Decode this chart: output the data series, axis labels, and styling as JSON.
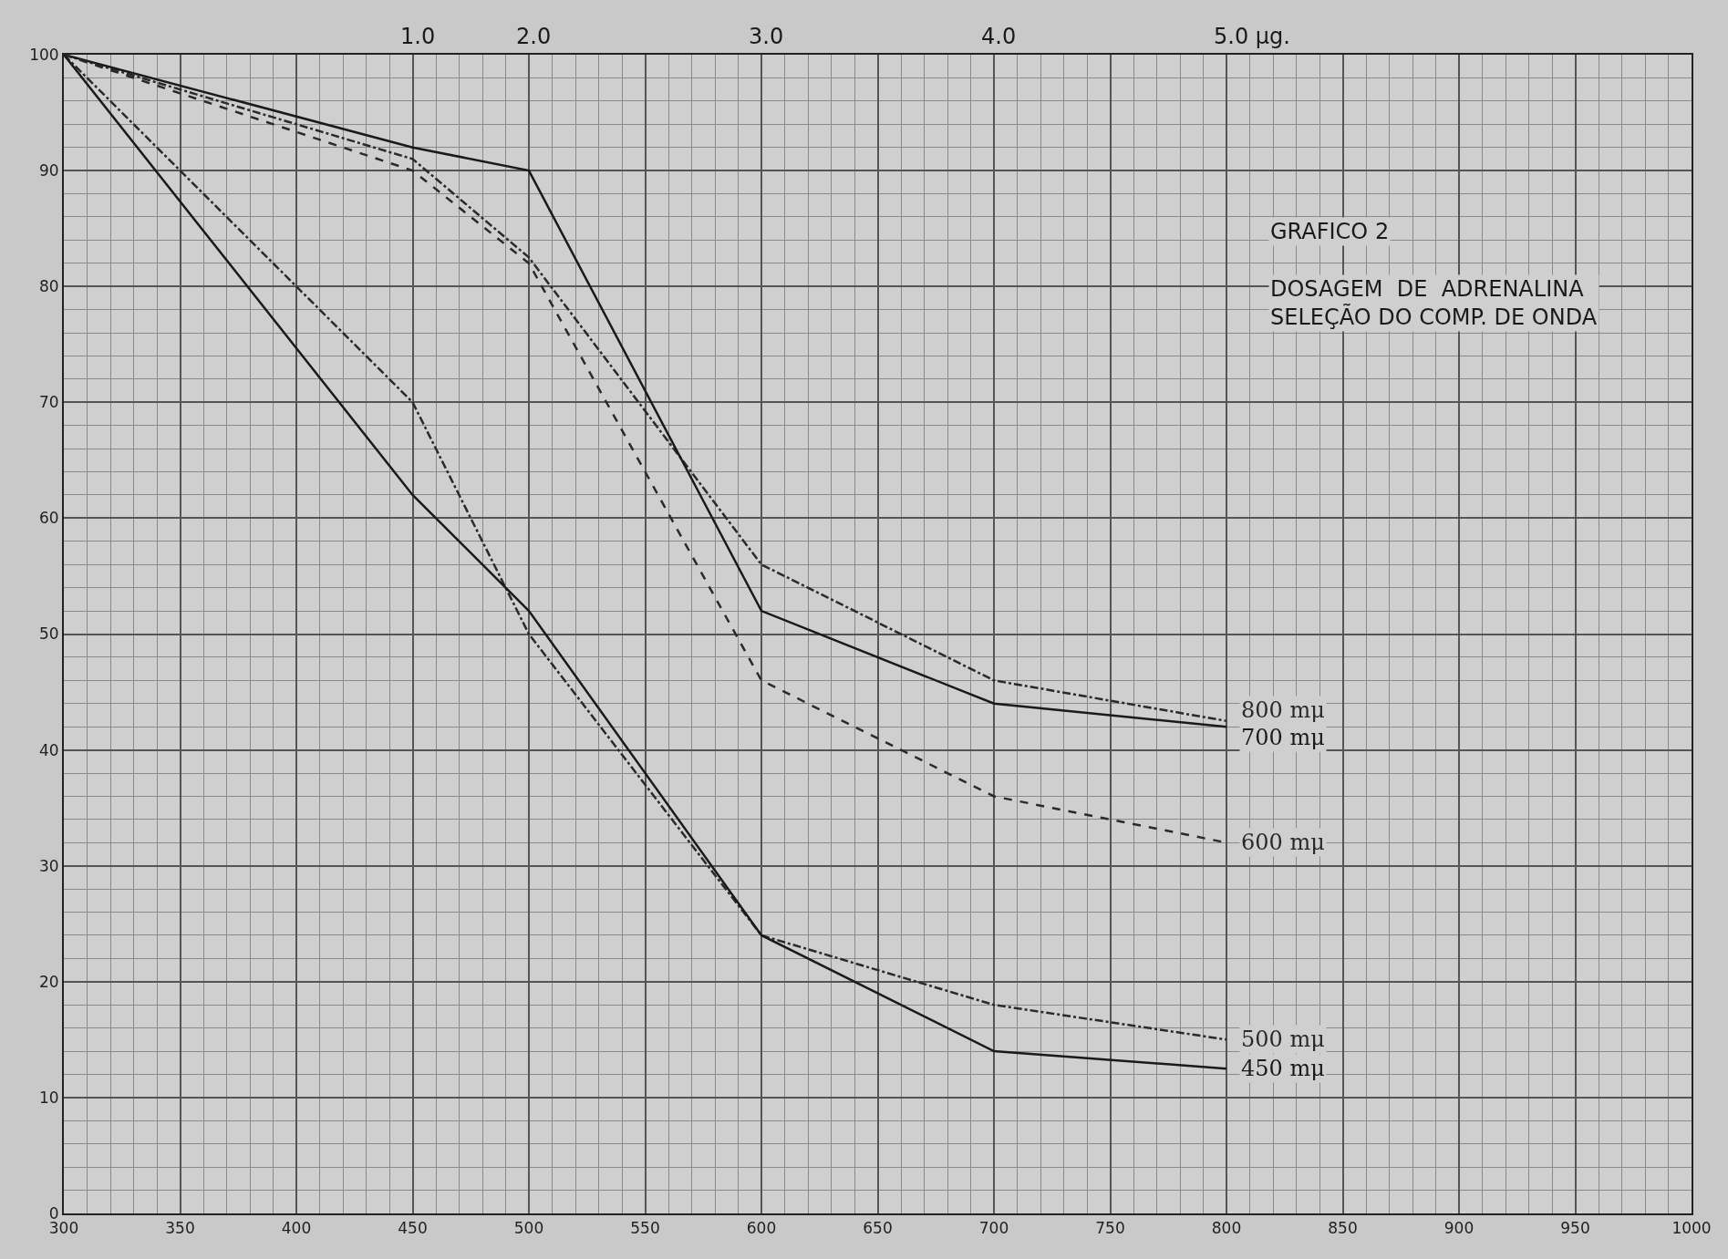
{
  "chart_data": {
    "type": "line",
    "title": "GRAFICO 2",
    "subtitle": "DOSAGEM  DE  ADRENALINA\nSELEÇÃO DO COMP. DE ONDA",
    "x": [
      300,
      450,
      500,
      600,
      700,
      800
    ],
    "series": [
      {
        "name": "800 mμ",
        "color": "#2a2a2a",
        "line_style": "dashdot",
        "values": [
          100,
          91,
          82.5,
          56,
          46,
          42.5
        ]
      },
      {
        "name": "700 mμ",
        "color": "#1a1a1a",
        "line_style": "solid",
        "values": [
          100,
          92,
          90,
          52,
          44,
          42
        ]
      },
      {
        "name": "600 mμ",
        "color": "#2a2a2a",
        "line_style": "dashed",
        "values": [
          100,
          90,
          82,
          46,
          36,
          32
        ]
      },
      {
        "name": "500 mμ",
        "color": "#2a2a2a",
        "line_style": "dashdot",
        "values": [
          100,
          70,
          50,
          24,
          18,
          15
        ]
      },
      {
        "name": "450 mμ",
        "color": "#1a1a1a",
        "line_style": "solid",
        "values": [
          100,
          62,
          52,
          24,
          14,
          12.5
        ]
      }
    ],
    "xlim": [
      300,
      1000
    ],
    "xticks": [
      300,
      350,
      400,
      450,
      500,
      550,
      600,
      650,
      700,
      750,
      800,
      850,
      900,
      950,
      1000
    ],
    "ylim": [
      0,
      100
    ],
    "yticks": [
      0,
      10,
      20,
      30,
      40,
      50,
      60,
      70,
      80,
      90,
      100
    ],
    "annotations": [
      "1.0",
      "2.0",
      "3.0",
      "4.0",
      "5.0 μg."
    ],
    "grid": true,
    "legend": false,
    "marker": "none"
  }
}
